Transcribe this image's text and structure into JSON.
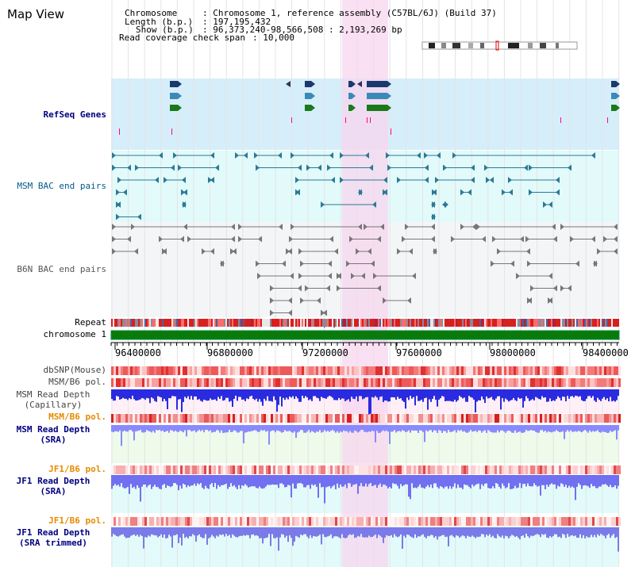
{
  "view_title": "Map View",
  "header": {
    "chromosome_key": "Chromosome",
    "chromosome_val": ": Chromosome 1, reference assembly (C57BL/6J) (Build 37)",
    "length_key": "Length (b.p.)",
    "length_val": ": 197,195,432",
    "show_key": "Show (b.p.)",
    "show_val": ": 96,373,240-98,566,508 : 2,193,269 bp",
    "coverage_key": "Read coverage check span",
    "coverage_val": ": 10,000"
  },
  "tracks": {
    "refseq_genes": "RefSeq Genes",
    "msm_bac": "MSM BAC end pairs",
    "b6n_bac": "B6N BAC end pairs",
    "repeat": "Repeat",
    "chromosome": "chromosome 1",
    "dbsnp": "dbSNP(Mouse)",
    "msm_b6_pol_1": "MSM/B6 pol.",
    "msm_read_depth_cap_1": "MSM Read Depth",
    "msm_read_depth_cap_2": "(Capillary)",
    "msm_b6_pol_2": "MSM/B6 pol.",
    "msm_read_depth_sra_1": "MSM Read Depth",
    "msm_read_depth_sra_2": "(SRA)",
    "jf1_b6_pol_1": "JF1/B6 pol.",
    "jf1_read_depth_sra_1": "JF1 Read Depth",
    "jf1_read_depth_sra_2": "(SRA)",
    "jf1_b6_pol_2": "JF1/B6 pol.",
    "jf1_read_depth_trim_1": "JF1 Read Depth",
    "jf1_read_depth_trim_2": "(SRA trimmed)"
  },
  "axis": {
    "ticks": [
      "96400000",
      "96800000",
      "97200000",
      "97600000",
      "98000000",
      "98400000"
    ]
  },
  "colors": {
    "highlight": "#f7d6ef",
    "refseq_bg": "#d6eefa",
    "msm_bg": "#e2fafa",
    "b6n_bg": "#f4f5f7",
    "chromosome": "#0a7a0a",
    "label_navy": "#000080",
    "label_teal": "#005a8a",
    "label_gray": "#555555",
    "label_orange": "#e68a00"
  }
}
